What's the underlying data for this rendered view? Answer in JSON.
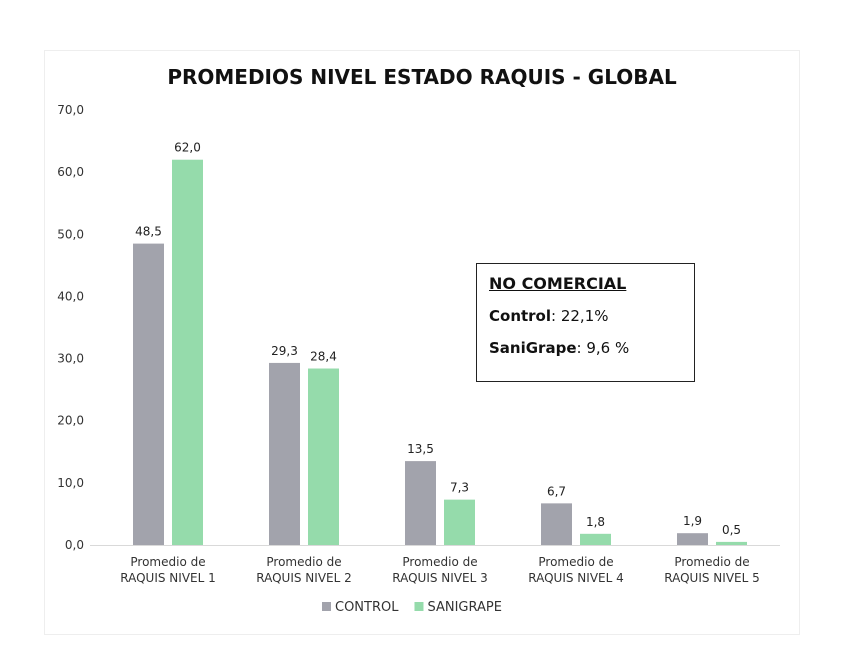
{
  "chart_data": {
    "type": "bar",
    "title": "PROMEDIOS NIVEL ESTADO RAQUIS - GLOBAL",
    "categories": [
      [
        "Promedio de",
        "RAQUIS NIVEL 1"
      ],
      [
        "Promedio de",
        "RAQUIS NIVEL 2"
      ],
      [
        "Promedio de",
        "RAQUIS NIVEL 3"
      ],
      [
        "Promedio de",
        "RAQUIS NIVEL 4"
      ],
      [
        "Promedio de",
        "RAQUIS NIVEL 5"
      ]
    ],
    "series": [
      {
        "name": "CONTROL",
        "color": "#a2a3ac",
        "values": [
          48.5,
          29.3,
          13.5,
          6.7,
          1.9
        ],
        "labels": [
          "48,5",
          "29,3",
          "13,5",
          "6,7",
          "1,9"
        ]
      },
      {
        "name": "SANIGRAPE",
        "color": "#95dbab",
        "values": [
          62.0,
          28.4,
          7.3,
          1.8,
          0.5
        ],
        "labels": [
          "62,0",
          "28,4",
          "7,3",
          "1,8",
          "0,5"
        ]
      }
    ],
    "y_ticks": [
      "0,0",
      "10,0",
      "20,0",
      "30,0",
      "40,0",
      "50,0",
      "60,0",
      "70,0"
    ],
    "ylim": [
      0,
      70
    ],
    "grid": false,
    "legend_position": "bottom"
  },
  "annotation": {
    "heading": "NO COMERCIAL",
    "control_name": "Control",
    "control_value": ": 22,1%",
    "sanigrape_name": "SaniGrape",
    "sanigrape_value": ": 9,6 %"
  }
}
